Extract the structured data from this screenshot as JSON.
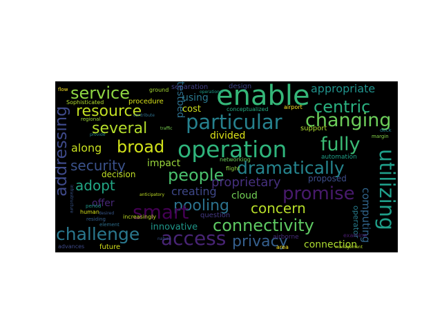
{
  "wordcloud": {
    "background": "#000000",
    "words": [
      {
        "text": "operation",
        "color": "#2fb47c"
      },
      {
        "text": "enable",
        "color": "#35b779"
      },
      {
        "text": "particular",
        "color": "#26818e"
      },
      {
        "text": "changing",
        "color": "#6ccd5a"
      },
      {
        "text": "service",
        "color": "#8fd744"
      },
      {
        "text": "resource",
        "color": "#c2df23"
      },
      {
        "text": "several",
        "color": "#b5de2b"
      },
      {
        "text": "broad",
        "color": "#d2e21b"
      },
      {
        "text": "fully",
        "color": "#3bbb75"
      },
      {
        "text": "centric",
        "color": "#2ab07f"
      },
      {
        "text": "appropriate",
        "color": "#20928c"
      },
      {
        "text": "dramatically",
        "color": "#25848e"
      },
      {
        "text": "security",
        "color": "#3b528b"
      },
      {
        "text": "people",
        "color": "#4ac16d"
      },
      {
        "text": "adopt",
        "color": "#22a785"
      },
      {
        "text": "promise",
        "color": "#481a6c"
      },
      {
        "text": "utilizing",
        "color": "#1f9e89"
      },
      {
        "text": "addressing",
        "color": "#3e4989"
      },
      {
        "text": "pooling",
        "color": "#2c728e"
      },
      {
        "text": "concern",
        "color": "#b8de29"
      },
      {
        "text": "connectivity",
        "color": "#5ec962"
      },
      {
        "text": "challenge",
        "color": "#2a788e"
      },
      {
        "text": "access",
        "color": "#482475"
      },
      {
        "text": "privacy",
        "color": "#355f8d"
      },
      {
        "text": "smart",
        "color": "#440154"
      },
      {
        "text": "proprietary",
        "color": "#46307e"
      },
      {
        "text": "computing",
        "color": "#31668e"
      },
      {
        "text": "connection",
        "color": "#addc30"
      },
      {
        "text": "innovative",
        "color": "#1f988b"
      },
      {
        "text": "creating",
        "color": "#3f4889"
      },
      {
        "text": "cloud",
        "color": "#73d056"
      },
      {
        "text": "divided",
        "color": "#dde318"
      },
      {
        "text": "impact",
        "color": "#9bd93c"
      },
      {
        "text": "along",
        "color": "#c8e020"
      },
      {
        "text": "offer",
        "color": "#482878"
      },
      {
        "text": "testbed",
        "color": "#2d708e"
      },
      {
        "text": "using",
        "color": "#2a788e"
      },
      {
        "text": "cost",
        "color": "#d0e11c"
      },
      {
        "text": "separation",
        "color": "#433e85"
      },
      {
        "text": "design",
        "color": "#404688"
      },
      {
        "text": "procedure",
        "color": "#d8e219"
      },
      {
        "text": "decision",
        "color": "#c0df25"
      },
      {
        "text": "proposed",
        "color": "#3d4d8a"
      },
      {
        "text": "future",
        "color": "#d5e21a"
      },
      {
        "text": "support",
        "color": "#addc30"
      },
      {
        "text": "automation",
        "color": "#1fa088"
      },
      {
        "text": "networking",
        "color": "#6ece58"
      },
      {
        "text": "flight",
        "color": "#90d743"
      },
      {
        "text": "airborne",
        "color": "#472d7b"
      },
      {
        "text": "question",
        "color": "#443983"
      },
      {
        "text": "operator",
        "color": "#287d8e"
      },
      {
        "text": "human",
        "color": "#d8e219"
      },
      {
        "text": "increasingly",
        "color": "#c2df23"
      },
      {
        "text": "advances",
        "color": "#3e4a89"
      },
      {
        "text": "conceptualized",
        "color": "#25ac82"
      },
      {
        "text": "Sophisticated",
        "color": "#b2dd2d"
      },
      {
        "text": "airport",
        "color": "#fde725"
      },
      {
        "text": "ground",
        "color": "#a8db34"
      },
      {
        "text": "regional",
        "color": "#a0da39"
      },
      {
        "text": "examine",
        "color": "#481c6e"
      },
      {
        "text": "area",
        "color": "#fde725"
      },
      {
        "text": "residing",
        "color": "#355e8d"
      },
      {
        "text": "element",
        "color": "#2e6f8e"
      },
      {
        "text": "margin",
        "color": "#86d549"
      },
      {
        "text": "period",
        "color": "#1f968b"
      },
      {
        "text": "deck",
        "color": "#23888e"
      },
      {
        "text": "provide",
        "color": "#26828e"
      },
      {
        "text": "infrastructure",
        "color": "#39568c"
      },
      {
        "text": "contribute",
        "color": "#2d708e"
      },
      {
        "text": "desired",
        "color": "#38588c"
      },
      {
        "text": "flow",
        "color": "#fde725"
      },
      {
        "text": "nature",
        "color": "#3b528b"
      },
      {
        "text": "anticipatory",
        "color": "#c0df25"
      },
      {
        "text": "traffic",
        "color": "#7ad151"
      },
      {
        "text": "management",
        "color": "#bade28"
      },
      {
        "text": "operational",
        "color": "#1e9c89"
      }
    ]
  }
}
